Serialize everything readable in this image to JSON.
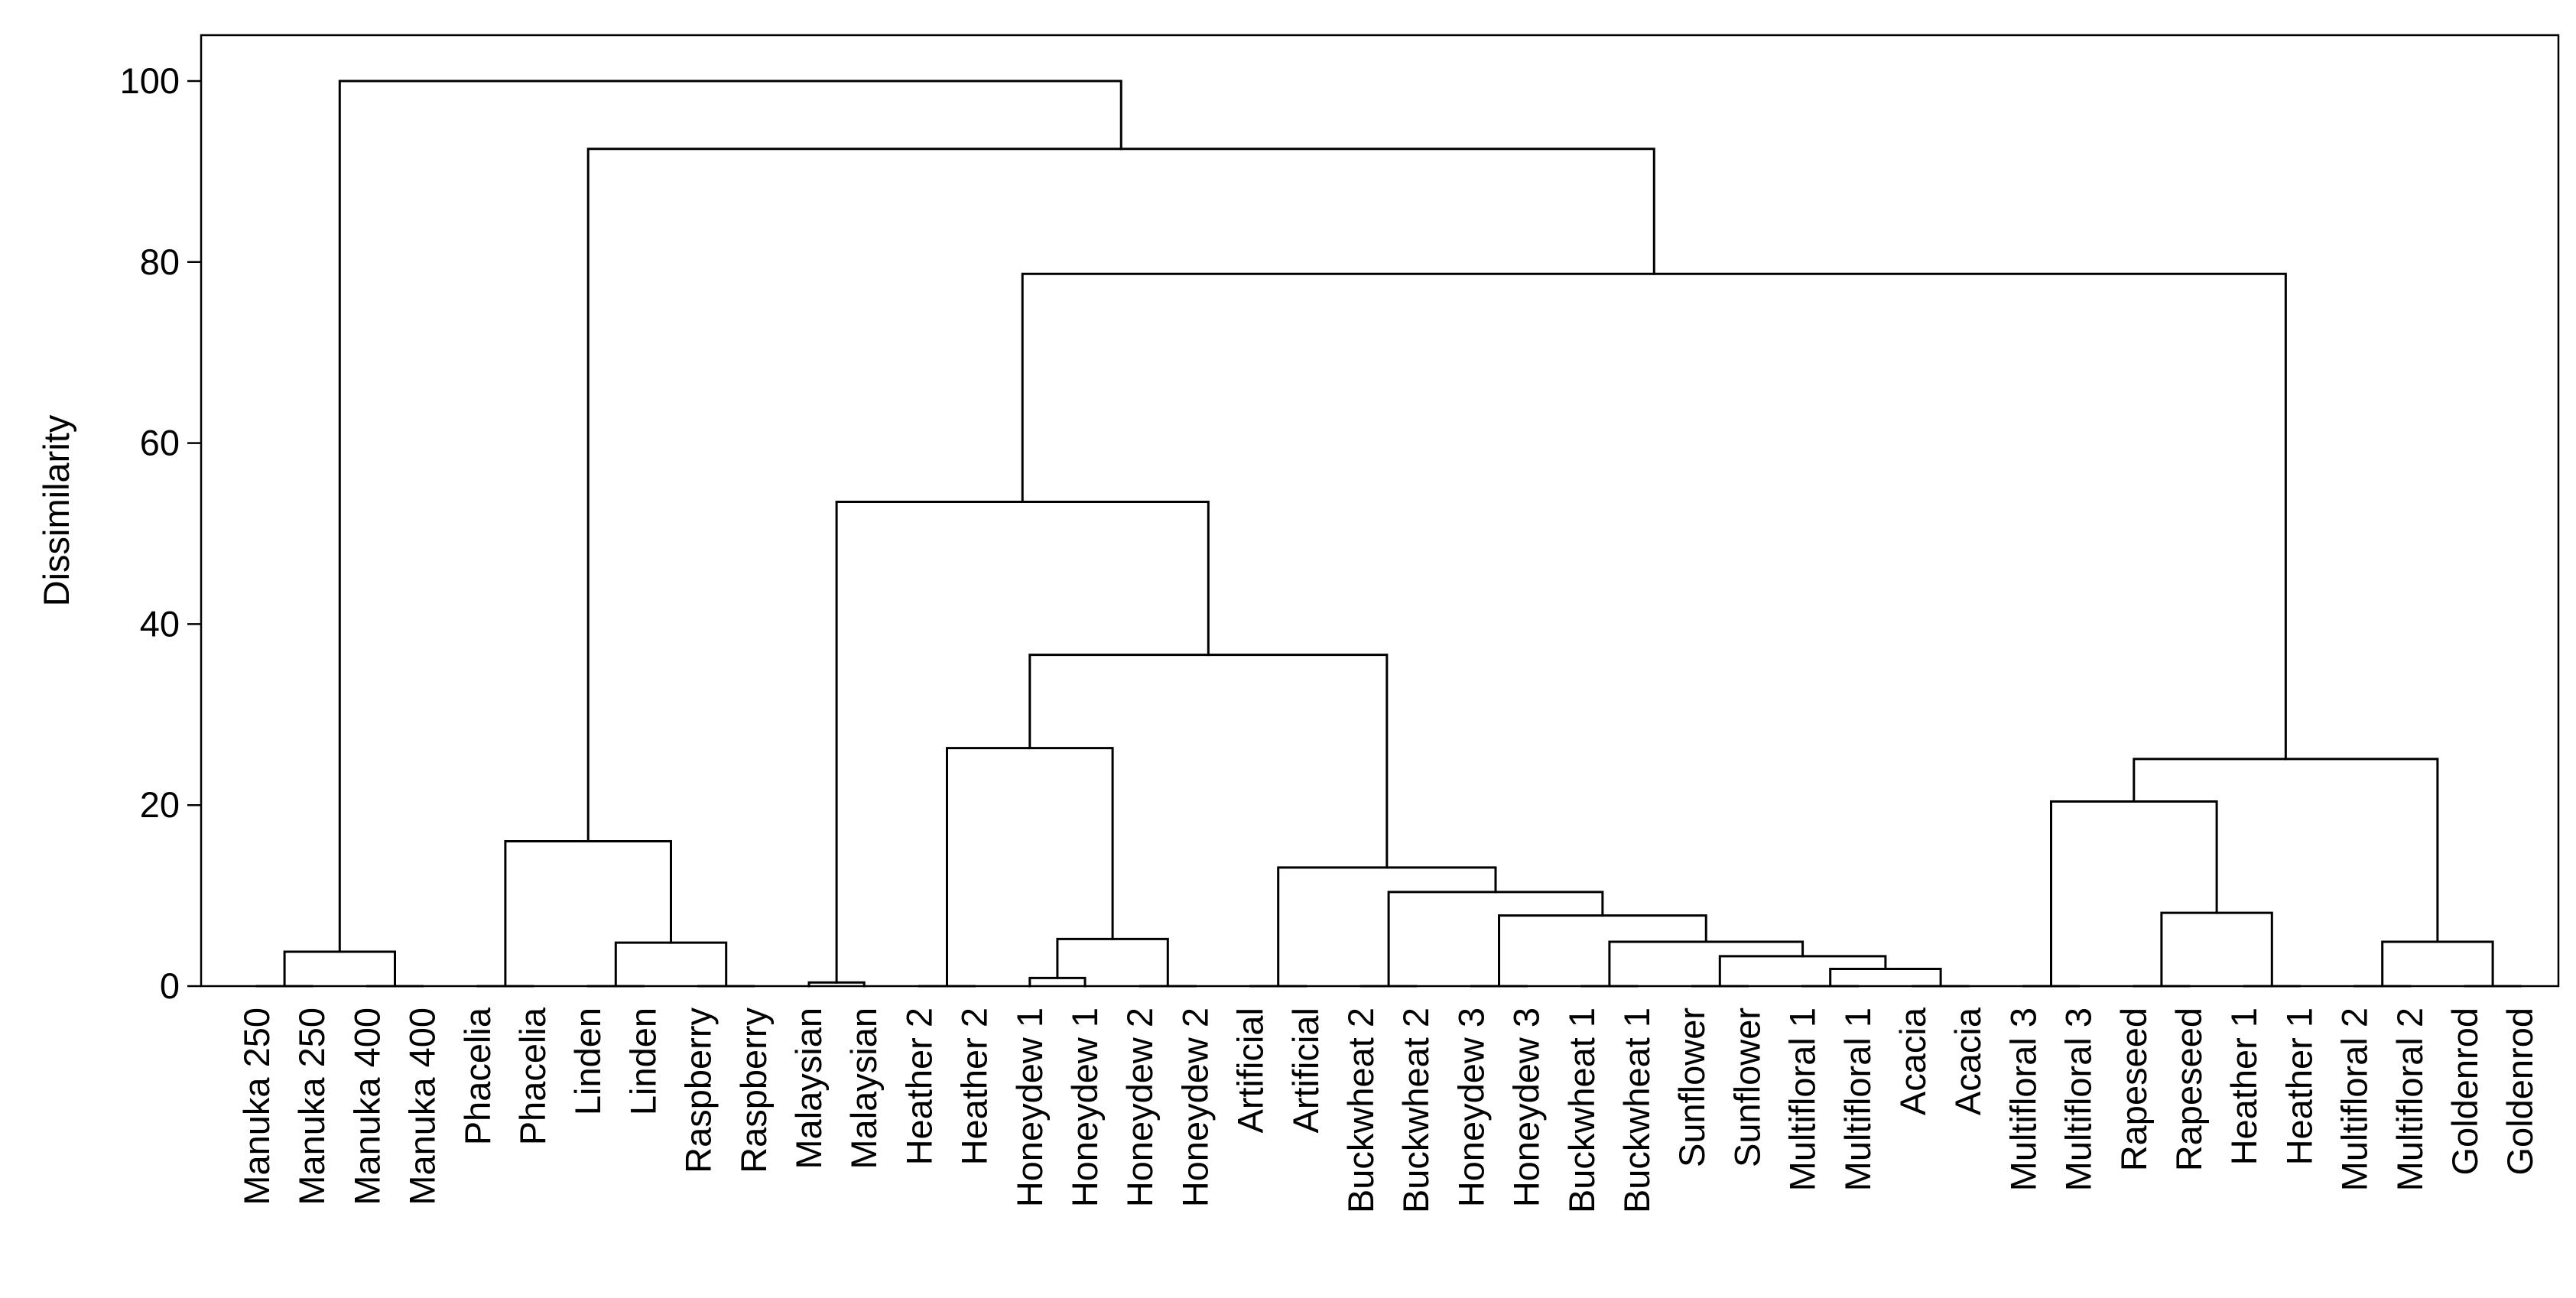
{
  "chart_data": {
    "type": "dendrogram",
    "ylabel": "Dissimilarity",
    "ylim": [
      0,
      100
    ],
    "yticks": [
      0,
      20,
      40,
      60,
      80,
      100
    ],
    "leaves": [
      "Manuka 250",
      "Manuka 250",
      "Manuka 400",
      "Manuka 400",
      "Phacelia",
      "Phacelia",
      "Linden",
      "Linden",
      "Raspberry",
      "Raspberry",
      "Malaysian",
      "Malaysian",
      "Heather 2",
      "Heather 2",
      "Honeydew 1",
      "Honeydew 1",
      "Honeydew 2",
      "Honeydew 2",
      "Artificial",
      "Artificial",
      "Buckwheat 2",
      "Buckwheat 2",
      "Honeydew 3",
      "Honeydew 3",
      "Buckwheat 1",
      "Buckwheat 1",
      "Sunflower",
      "Sunflower",
      "Multifloral 1",
      "Multifloral 1",
      "Acacia",
      "Acacia",
      "Multifloral 3",
      "Multifloral 3",
      "Rapeseed",
      "Rapeseed",
      "Heather 1",
      "Heather 1",
      "Multifloral 2",
      "Multifloral 2",
      "Goldenrod",
      "Goldenrod"
    ],
    "merges": [
      {
        "id": "m1",
        "left": "L0",
        "right": "L1",
        "height": 0
      },
      {
        "id": "m2",
        "left": "L2",
        "right": "L3",
        "height": 0
      },
      {
        "id": "m3",
        "left": "m1",
        "right": "m2",
        "height": 3.8
      },
      {
        "id": "m4",
        "left": "L4",
        "right": "L5",
        "height": 0
      },
      {
        "id": "m5",
        "left": "L6",
        "right": "L7",
        "height": 0
      },
      {
        "id": "m6",
        "left": "L8",
        "right": "L9",
        "height": 0
      },
      {
        "id": "m7",
        "left": "m5",
        "right": "m6",
        "height": 4.8
      },
      {
        "id": "m8",
        "left": "m4",
        "right": "m7",
        "height": 16
      },
      {
        "id": "m9",
        "left": "L10",
        "right": "L11",
        "height": 0.4
      },
      {
        "id": "m10",
        "left": "L12",
        "right": "L13",
        "height": 0
      },
      {
        "id": "m11",
        "left": "L14",
        "right": "L15",
        "height": 0.9
      },
      {
        "id": "m12",
        "left": "L16",
        "right": "L17",
        "height": 0
      },
      {
        "id": "m13",
        "left": "m11",
        "right": "m12",
        "height": 5.2
      },
      {
        "id": "m14",
        "left": "m10",
        "right": "m13",
        "height": 26.3
      },
      {
        "id": "m15",
        "left": "L18",
        "right": "L19",
        "height": 0
      },
      {
        "id": "m16",
        "left": "L20",
        "right": "L21",
        "height": 0
      },
      {
        "id": "m17",
        "left": "L22",
        "right": "L23",
        "height": 0
      },
      {
        "id": "m18",
        "left": "L24",
        "right": "L25",
        "height": 0
      },
      {
        "id": "m19",
        "left": "L26",
        "right": "L27",
        "height": 0
      },
      {
        "id": "m20",
        "left": "L28",
        "right": "L29",
        "height": 0
      },
      {
        "id": "m21",
        "left": "L30",
        "right": "L31",
        "height": 0
      },
      {
        "id": "m22",
        "left": "m20",
        "right": "m21",
        "height": 1.9
      },
      {
        "id": "m23",
        "left": "m19",
        "right": "m22",
        "height": 3.3
      },
      {
        "id": "m24",
        "left": "m18",
        "right": "m23",
        "height": 4.9
      },
      {
        "id": "m25",
        "left": "m17",
        "right": "m24",
        "height": 7.8
      },
      {
        "id": "m26",
        "left": "m16",
        "right": "m25",
        "height": 10.4
      },
      {
        "id": "m27",
        "left": "m15",
        "right": "m26",
        "height": 13.1
      },
      {
        "id": "m28",
        "left": "m14",
        "right": "m27",
        "height": 36.6
      },
      {
        "id": "m29",
        "left": "m9",
        "right": "m28",
        "height": 53.5
      },
      {
        "id": "m30",
        "left": "L32",
        "right": "L33",
        "height": 0
      },
      {
        "id": "m31",
        "left": "L34",
        "right": "L35",
        "height": 0
      },
      {
        "id": "m32",
        "left": "L36",
        "right": "L37",
        "height": 0
      },
      {
        "id": "m33",
        "left": "m31",
        "right": "m32",
        "height": 8.1
      },
      {
        "id": "m34",
        "left": "m30",
        "right": "m33",
        "height": 20.4
      },
      {
        "id": "m35",
        "left": "L38",
        "right": "L39",
        "height": 0
      },
      {
        "id": "m36",
        "left": "L40",
        "right": "L41",
        "height": 0
      },
      {
        "id": "m37",
        "left": "m35",
        "right": "m36",
        "height": 4.9
      },
      {
        "id": "m38",
        "left": "m34",
        "right": "m37",
        "height": 25.1
      },
      {
        "id": "m39",
        "left": "m29",
        "right": "m38",
        "height": 78.7
      },
      {
        "id": "m40",
        "left": "m8",
        "right": "m39",
        "height": 92.5
      },
      {
        "id": "m41",
        "left": "m3",
        "right": "m40",
        "height": 100
      }
    ]
  }
}
